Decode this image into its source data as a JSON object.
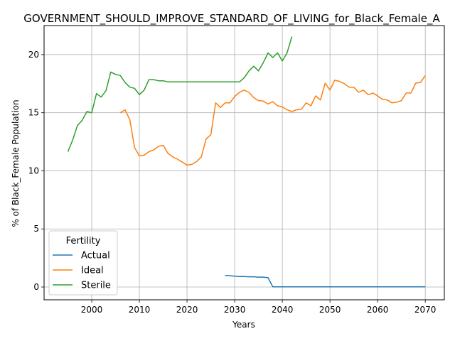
{
  "chart_data": {
    "type": "line",
    "title": "GOVERNMENT_SHOULD_IMPROVE_STANDARD_OF_LIVING_for_Black_Female_A",
    "xlabel": "Years",
    "ylabel": "% of Black_Female Population",
    "xlim": [
      1990.0,
      2074.0
    ],
    "ylim": [
      -1.1,
      22.5
    ],
    "xticks": [
      2000,
      2010,
      2020,
      2030,
      2040,
      2050,
      2060,
      2070
    ],
    "yticks": [
      0,
      5,
      10,
      15,
      20
    ],
    "grid": true,
    "legend": {
      "title": "Fertility",
      "position": "lower-left"
    },
    "series": [
      {
        "name": "Actual",
        "color": "#1f77b4",
        "x": [
          2028,
          2029,
          2030,
          2031,
          2032,
          2033,
          2034,
          2035,
          2036,
          2037,
          2038,
          2039,
          2040,
          2045,
          2050,
          2055,
          2060,
          2065,
          2070
        ],
        "y": [
          1.0,
          0.97,
          0.93,
          0.9,
          0.9,
          0.88,
          0.88,
          0.85,
          0.85,
          0.8,
          0.02,
          0.02,
          0.02,
          0.02,
          0.02,
          0.02,
          0.02,
          0.02,
          0.02
        ]
      },
      {
        "name": "Ideal",
        "color": "#ff7f0e",
        "x": [
          2006,
          2007,
          2008,
          2009,
          2010,
          2011,
          2012,
          2013,
          2014,
          2015,
          2016,
          2017,
          2018,
          2019,
          2020,
          2021,
          2022,
          2023,
          2024,
          2025,
          2026,
          2027,
          2028,
          2029,
          2030,
          2031,
          2032,
          2033,
          2034,
          2035,
          2036,
          2037,
          2038,
          2039,
          2040,
          2041,
          2042,
          2043,
          2044,
          2045,
          2046,
          2047,
          2048,
          2049,
          2050,
          2051,
          2052,
          2053,
          2054,
          2055,
          2056,
          2057,
          2058,
          2059,
          2060,
          2061,
          2062,
          2063,
          2064,
          2065,
          2066,
          2067,
          2068,
          2069,
          2070
        ],
        "y": [
          15.0,
          15.25,
          14.4,
          12.0,
          11.3,
          11.35,
          11.65,
          11.8,
          12.1,
          12.2,
          11.5,
          11.2,
          11.0,
          10.75,
          10.5,
          10.55,
          10.8,
          11.2,
          12.75,
          13.1,
          15.85,
          15.45,
          15.85,
          15.85,
          16.4,
          16.75,
          16.95,
          16.75,
          16.3,
          16.05,
          16.0,
          15.75,
          15.95,
          15.6,
          15.5,
          15.25,
          15.1,
          15.25,
          15.3,
          15.85,
          15.6,
          16.45,
          16.1,
          17.55,
          16.95,
          17.8,
          17.7,
          17.5,
          17.2,
          17.2,
          16.75,
          16.95,
          16.55,
          16.7,
          16.45,
          16.15,
          16.1,
          15.85,
          15.9,
          16.05,
          16.7,
          16.7,
          17.55,
          17.6,
          18.2
        ]
      },
      {
        "name": "Sterile",
        "color": "#2ca02c",
        "x": [
          1995,
          1996,
          1997,
          1998,
          1999,
          2000,
          2001,
          2002,
          2003,
          2004,
          2005,
          2006,
          2007,
          2008,
          2009,
          2010,
          2011,
          2012,
          2013,
          2014,
          2015,
          2016,
          2017,
          2018,
          2019,
          2020,
          2021,
          2022,
          2023,
          2024,
          2025,
          2026,
          2027,
          2028,
          2029,
          2030,
          2031,
          2032,
          2033,
          2034,
          2035,
          2036,
          2037,
          2038,
          2039,
          2040,
          2041,
          2042
        ],
        "y": [
          11.65,
          12.65,
          13.9,
          14.35,
          15.1,
          15.0,
          16.65,
          16.35,
          16.9,
          18.5,
          18.3,
          18.2,
          17.6,
          17.2,
          17.1,
          16.55,
          16.95,
          17.85,
          17.85,
          17.75,
          17.75,
          17.65,
          17.65,
          17.65,
          17.65,
          17.65,
          17.65,
          17.65,
          17.65,
          17.65,
          17.65,
          17.65,
          17.65,
          17.65,
          17.65,
          17.65,
          17.65,
          18.0,
          18.6,
          19.0,
          18.6,
          19.3,
          20.15,
          19.75,
          20.15,
          19.45,
          20.15,
          21.55
        ]
      }
    ]
  }
}
